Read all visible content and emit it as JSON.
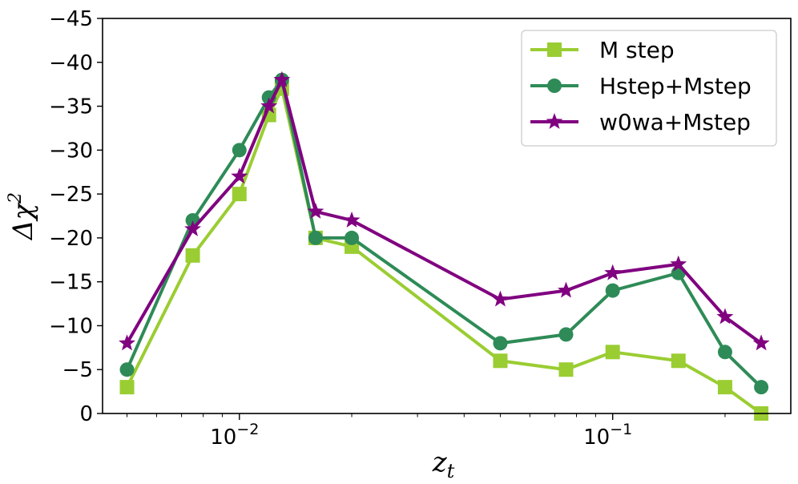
{
  "chart_data": {
    "type": "line",
    "xscale": "log",
    "xlim": [
      0.0043,
      0.3
    ],
    "ylim": [
      0,
      -45
    ],
    "y_inverted": true,
    "xlabel_main": "z",
    "xlabel_sub": "t",
    "ylabel_main": "Δχ",
    "ylabel_sup": "2",
    "xticks": [
      {
        "value": 0.01,
        "base": "10",
        "exp": "−2"
      },
      {
        "value": 0.1,
        "base": "10",
        "exp": "−1"
      }
    ],
    "yticks": [
      {
        "value": 0,
        "label": "0"
      },
      {
        "value": -5,
        "label": "−5"
      },
      {
        "value": -10,
        "label": "−10"
      },
      {
        "value": -15,
        "label": "−15"
      },
      {
        "value": -20,
        "label": "−20"
      },
      {
        "value": -25,
        "label": "−25"
      },
      {
        "value": -30,
        "label": "−30"
      },
      {
        "value": -35,
        "label": "−35"
      },
      {
        "value": -40,
        "label": "−40"
      },
      {
        "value": -45,
        "label": "−45"
      }
    ],
    "legend_position": "top-right",
    "series": [
      {
        "name": "M step",
        "color": "#9acd32",
        "marker": "square",
        "x": [
          0.005,
          0.0075,
          0.01,
          0.012,
          0.013,
          0.016,
          0.02,
          0.05,
          0.075,
          0.1,
          0.15,
          0.2,
          0.25
        ],
        "y": [
          -3,
          -18,
          -25,
          -34,
          -37,
          -20,
          -19,
          -6,
          -5,
          -7,
          -6,
          -3,
          0
        ]
      },
      {
        "name": "Hstep+Mstep",
        "color": "#2e8b57",
        "marker": "circle",
        "x": [
          0.005,
          0.0075,
          0.01,
          0.012,
          0.013,
          0.016,
          0.02,
          0.05,
          0.075,
          0.1,
          0.15,
          0.2,
          0.25
        ],
        "y": [
          -5,
          -22,
          -30,
          -36,
          -38,
          -20,
          -20,
          -8,
          -9,
          -14,
          -16,
          -7,
          -3
        ]
      },
      {
        "name": "w0wa+Mstep",
        "color": "#800080",
        "marker": "star",
        "x": [
          0.005,
          0.0075,
          0.01,
          0.012,
          0.013,
          0.016,
          0.02,
          0.05,
          0.075,
          0.1,
          0.15,
          0.2,
          0.25
        ],
        "y": [
          -8,
          -21,
          -27,
          -35,
          -38,
          -23,
          -22,
          -13,
          -14,
          -16,
          -17,
          -11,
          -8
        ]
      }
    ]
  }
}
